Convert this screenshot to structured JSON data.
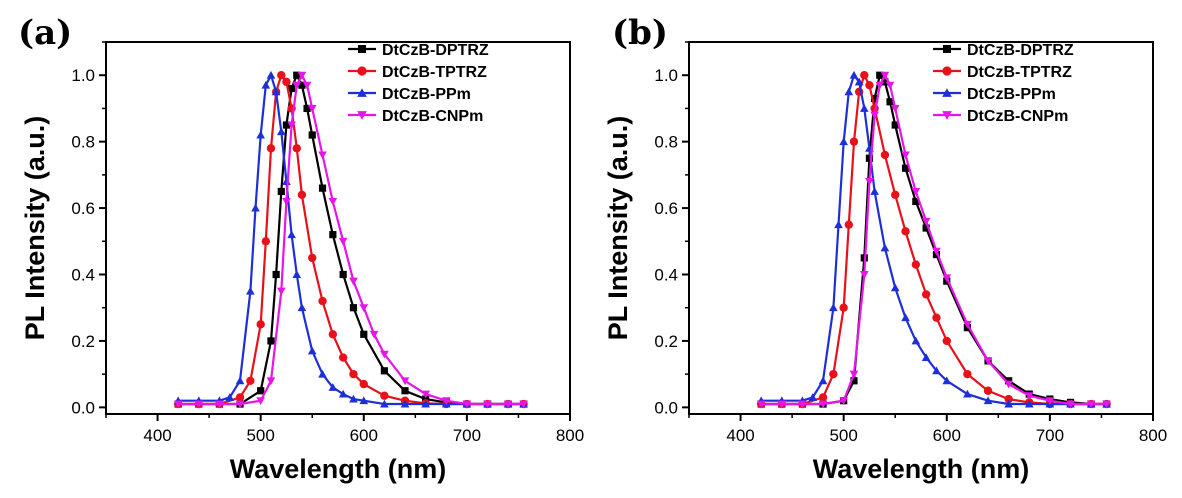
{
  "chart_data": [
    {
      "type": "line",
      "panel_label": "(a)",
      "xlabel": "Wavelength (nm)",
      "ylabel": "PL Intensity (a.u.)",
      "xlim": [
        350,
        800
      ],
      "ylim": [
        -0.02,
        1.1
      ],
      "xticks": [
        "400",
        "500",
        "600",
        "700",
        "800"
      ],
      "yticks": [
        "0.0",
        "0.2",
        "0.4",
        "0.6",
        "0.8",
        "1.0"
      ],
      "legend_position": "top-right",
      "series": [
        {
          "name": "DtCzB-DPTRZ",
          "color": "#000000",
          "marker": "square",
          "x": [
            420,
            440,
            460,
            480,
            500,
            510,
            515,
            520,
            525,
            530,
            535,
            540,
            545,
            550,
            560,
            570,
            580,
            590,
            600,
            620,
            640,
            660,
            680,
            700,
            720,
            740,
            755
          ],
          "y": [
            0.01,
            0.01,
            0.01,
            0.01,
            0.05,
            0.2,
            0.4,
            0.65,
            0.85,
            0.96,
            1.0,
            0.97,
            0.9,
            0.82,
            0.66,
            0.52,
            0.4,
            0.3,
            0.22,
            0.11,
            0.05,
            0.025,
            0.015,
            0.01,
            0.01,
            0.01,
            0.01
          ]
        },
        {
          "name": "DtCzB-TPTRZ",
          "color": "#e8111a",
          "marker": "circle",
          "x": [
            420,
            440,
            460,
            480,
            490,
            500,
            505,
            510,
            515,
            520,
            525,
            530,
            535,
            540,
            550,
            560,
            570,
            580,
            590,
            600,
            620,
            640,
            660,
            680,
            700,
            720,
            740,
            755
          ],
          "y": [
            0.01,
            0.01,
            0.01,
            0.03,
            0.08,
            0.25,
            0.5,
            0.78,
            0.95,
            1.0,
            0.98,
            0.9,
            0.78,
            0.64,
            0.45,
            0.32,
            0.22,
            0.15,
            0.1,
            0.07,
            0.035,
            0.02,
            0.012,
            0.01,
            0.01,
            0.01,
            0.01,
            0.01
          ]
        },
        {
          "name": "DtCzB-PPm",
          "color": "#1f2fd8",
          "marker": "triangle-up",
          "x": [
            420,
            440,
            460,
            470,
            480,
            490,
            495,
            500,
            505,
            510,
            515,
            520,
            525,
            530,
            535,
            540,
            550,
            560,
            570,
            580,
            590,
            600,
            620,
            640,
            660,
            680,
            700,
            720,
            740,
            755
          ],
          "y": [
            0.02,
            0.02,
            0.02,
            0.03,
            0.08,
            0.35,
            0.6,
            0.82,
            0.97,
            1.0,
            0.95,
            0.83,
            0.68,
            0.52,
            0.4,
            0.3,
            0.17,
            0.1,
            0.06,
            0.04,
            0.025,
            0.02,
            0.01,
            0.01,
            0.01,
            0.01,
            0.01,
            0.01,
            0.01,
            0.01
          ]
        },
        {
          "name": "DtCzB-CNPm",
          "color": "#e815e8",
          "marker": "triangle-down",
          "x": [
            420,
            440,
            460,
            480,
            500,
            510,
            520,
            525,
            530,
            535,
            540,
            545,
            550,
            560,
            570,
            580,
            590,
            600,
            610,
            620,
            640,
            660,
            680,
            700,
            720,
            740,
            755
          ],
          "y": [
            0.01,
            0.01,
            0.01,
            0.01,
            0.02,
            0.08,
            0.35,
            0.62,
            0.85,
            0.97,
            1.0,
            0.97,
            0.9,
            0.76,
            0.62,
            0.5,
            0.38,
            0.3,
            0.22,
            0.16,
            0.08,
            0.04,
            0.02,
            0.01,
            0.01,
            0.01,
            0.01
          ]
        }
      ]
    },
    {
      "type": "line",
      "panel_label": "(b)",
      "xlabel": "Wavelength (nm)",
      "ylabel": "PL Intensity (a.u.)",
      "xlim": [
        350,
        800
      ],
      "ylim": [
        -0.02,
        1.1
      ],
      "xticks": [
        "400",
        "500",
        "600",
        "700",
        "800"
      ],
      "yticks": [
        "0.0",
        "0.2",
        "0.4",
        "0.6",
        "0.8",
        "1.0"
      ],
      "legend_position": "top-right",
      "series": [
        {
          "name": "DtCzB-DPTRZ",
          "color": "#000000",
          "marker": "square",
          "x": [
            420,
            440,
            460,
            480,
            500,
            510,
            520,
            525,
            530,
            535,
            540,
            545,
            550,
            560,
            570,
            580,
            590,
            600,
            620,
            640,
            660,
            680,
            700,
            720,
            740,
            755
          ],
          "y": [
            0.01,
            0.01,
            0.01,
            0.01,
            0.02,
            0.08,
            0.45,
            0.75,
            0.93,
            1.0,
            0.98,
            0.92,
            0.85,
            0.72,
            0.62,
            0.54,
            0.46,
            0.38,
            0.24,
            0.14,
            0.08,
            0.04,
            0.025,
            0.015,
            0.01,
            0.01
          ]
        },
        {
          "name": "DtCzB-TPTRZ",
          "color": "#e8111a",
          "marker": "circle",
          "x": [
            420,
            440,
            460,
            480,
            490,
            500,
            505,
            510,
            515,
            520,
            525,
            530,
            540,
            550,
            560,
            570,
            580,
            590,
            600,
            620,
            640,
            660,
            680,
            700,
            720,
            740,
            755
          ],
          "y": [
            0.01,
            0.01,
            0.01,
            0.03,
            0.1,
            0.3,
            0.55,
            0.8,
            0.95,
            1.0,
            0.97,
            0.9,
            0.76,
            0.64,
            0.53,
            0.43,
            0.34,
            0.27,
            0.2,
            0.1,
            0.05,
            0.025,
            0.015,
            0.01,
            0.01,
            0.01,
            0.01
          ]
        },
        {
          "name": "DtCzB-PPm",
          "color": "#1f2fd8",
          "marker": "triangle-up",
          "x": [
            420,
            440,
            460,
            470,
            480,
            490,
            495,
            500,
            505,
            510,
            515,
            520,
            525,
            530,
            540,
            550,
            560,
            570,
            580,
            590,
            600,
            620,
            640,
            660,
            680,
            700,
            720,
            740,
            755
          ],
          "y": [
            0.02,
            0.02,
            0.02,
            0.03,
            0.08,
            0.3,
            0.55,
            0.8,
            0.95,
            1.0,
            0.98,
            0.9,
            0.78,
            0.65,
            0.48,
            0.36,
            0.27,
            0.2,
            0.15,
            0.11,
            0.08,
            0.04,
            0.02,
            0.01,
            0.01,
            0.01,
            0.01,
            0.01,
            0.01
          ]
        },
        {
          "name": "DtCzB-CNPm",
          "color": "#e815e8",
          "marker": "triangle-down",
          "x": [
            420,
            440,
            460,
            480,
            500,
            510,
            520,
            525,
            530,
            535,
            540,
            545,
            550,
            560,
            570,
            580,
            590,
            600,
            620,
            640,
            660,
            680,
            700,
            720,
            740,
            755
          ],
          "y": [
            0.01,
            0.01,
            0.01,
            0.01,
            0.02,
            0.1,
            0.4,
            0.68,
            0.88,
            0.97,
            1.0,
            0.97,
            0.9,
            0.76,
            0.65,
            0.56,
            0.47,
            0.39,
            0.25,
            0.14,
            0.07,
            0.035,
            0.02,
            0.01,
            0.01,
            0.01
          ]
        }
      ]
    }
  ]
}
